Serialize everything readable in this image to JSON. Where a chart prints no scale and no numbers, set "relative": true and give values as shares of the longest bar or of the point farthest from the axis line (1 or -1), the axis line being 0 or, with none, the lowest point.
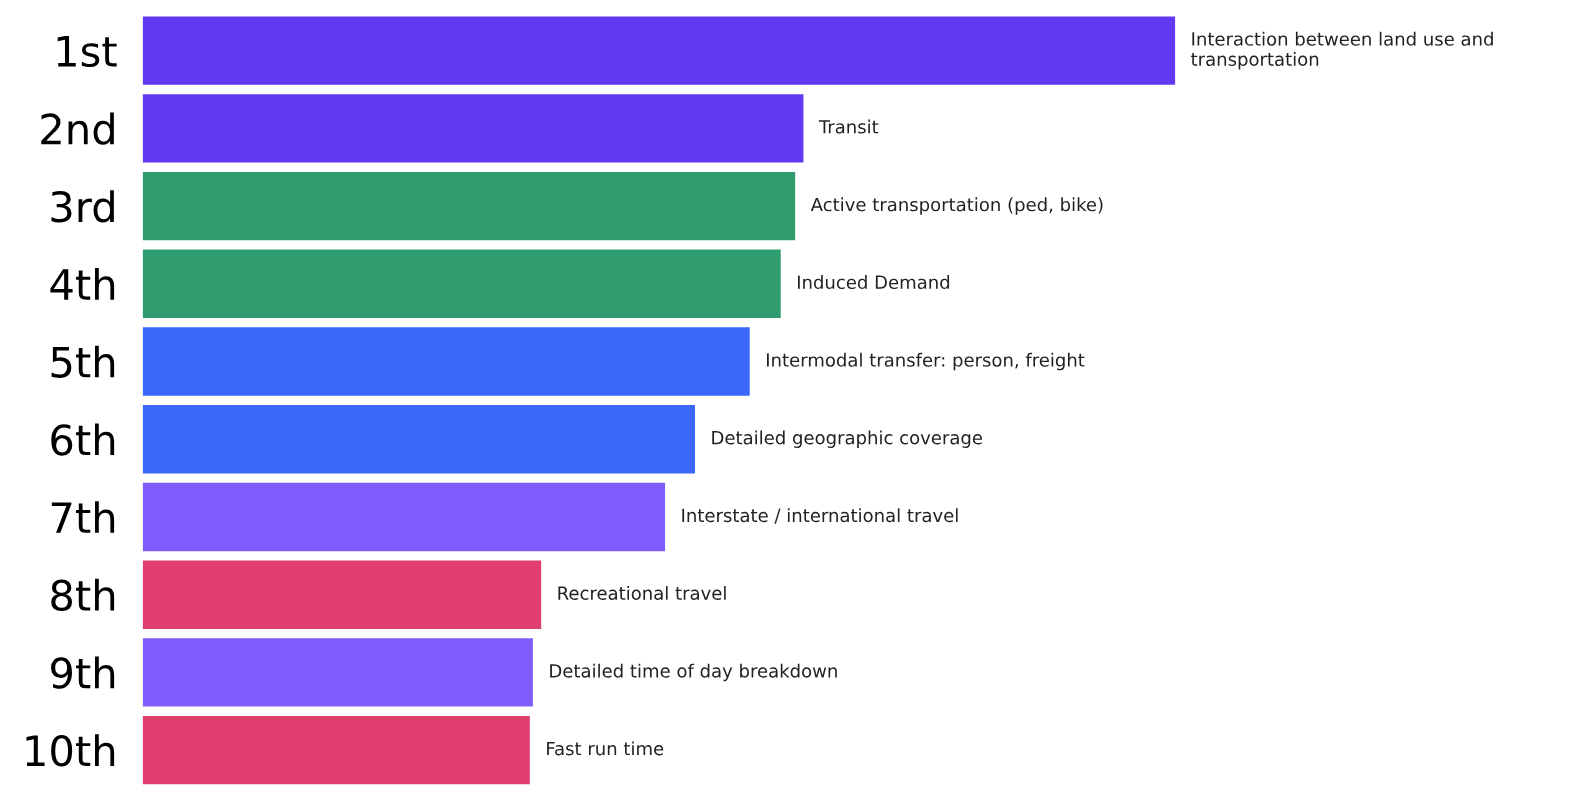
{
  "chart_data": {
    "type": "bar",
    "orientation": "horizontal",
    "relative": true,
    "tick_labels": "y",
    "categories": [
      "1st",
      "2nd",
      "3rd",
      "4th",
      "5th",
      "6th",
      "7th",
      "8th",
      "9th",
      "10th"
    ],
    "values": [
      1,
      0.64,
      0.632,
      0.618,
      0.588,
      0.535,
      0.506,
      0.386,
      0.378,
      0.375
    ],
    "colors": [
      "#6139f3",
      "#6139f3",
      "#2e9c6e",
      "#2e9c6e",
      "#3b68fb",
      "#3b68fb",
      "#7f5cfb",
      "#e03e6f",
      "#7f5cfb",
      "#e03e6f"
    ],
    "annotations": [
      {
        "text": "Interaction between land use and transportation",
        "x": 1,
        "y": "1st"
      },
      {
        "text": "Transit",
        "x": 0.64,
        "y": "2nd"
      },
      {
        "text": "Active transportation (ped, bike)",
        "x": 0.632,
        "y": "3rd"
      },
      {
        "text": "Induced Demand",
        "x": 0.618,
        "y": "4th"
      },
      {
        "text": "Intermodal transfer: person, freight",
        "x": 0.588,
        "y": "5th"
      },
      {
        "text": "Detailed geographic coverage",
        "x": 0.535,
        "y": "6th"
      },
      {
        "text": "Interstate / international travel",
        "x": 0.506,
        "y": "7th"
      },
      {
        "text": "Recreational travel",
        "x": 0.386,
        "y": "8th"
      },
      {
        "text": "Detailed time of day breakdown",
        "x": 0.378,
        "y": "9th"
      },
      {
        "text": "Fast run time",
        "x": 0.375,
        "y": "10th"
      }
    ]
  }
}
